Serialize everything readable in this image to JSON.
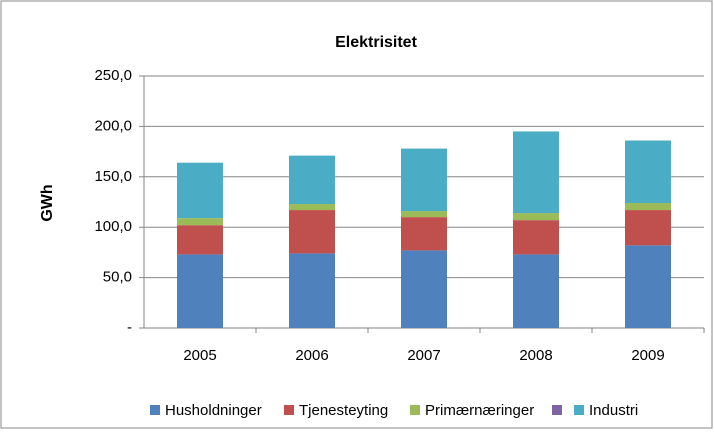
{
  "chart_data": {
    "type": "stacked_bar",
    "title": "Elektrisitet",
    "y_label": "GWh",
    "categories": [
      "2005",
      "2006",
      "2007",
      "2008",
      "2009"
    ],
    "series": [
      {
        "name": "Husholdninger",
        "color": "#4f81bd",
        "values": [
          73,
          74,
          77,
          73,
          82
        ]
      },
      {
        "name": "Tjenesteyting",
        "color": "#c0504d",
        "values": [
          29,
          43,
          33,
          34,
          35
        ]
      },
      {
        "name": "Primærnæringer",
        "color": "#9bbb59",
        "values": [
          7,
          6,
          6,
          7,
          7
        ]
      },
      {
        "name": null,
        "color": "#8064a2",
        "values": [
          0,
          0,
          0,
          0,
          0
        ]
      },
      {
        "name": "Industri",
        "color": "#4bacc6",
        "values": [
          55,
          48,
          62,
          81,
          62
        ]
      }
    ],
    "ylim": [
      0,
      250
    ],
    "yticks": [
      {
        "value": 0,
        "label": "-"
      },
      {
        "value": 50,
        "label": "50,0"
      },
      {
        "value": 100,
        "label": "100,0"
      },
      {
        "value": 150,
        "label": "150,0"
      },
      {
        "value": 200,
        "label": "200,0"
      },
      {
        "value": 250,
        "label": "250,0"
      }
    ],
    "grid": true
  }
}
